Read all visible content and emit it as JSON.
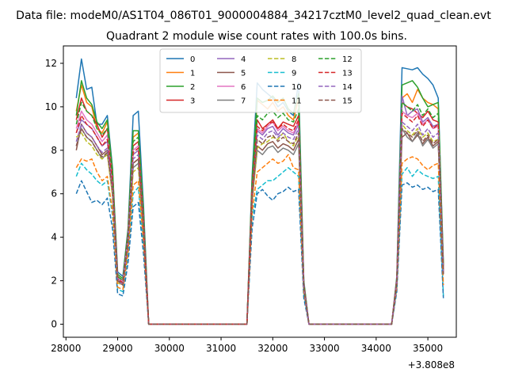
{
  "header": {
    "suptitle": "Data file: modeM0/AS1T04_086T01_9000004884_34217cztM0_level2_quad_clean.evt"
  },
  "chart_data": {
    "type": "line",
    "title": "Quadrant 2 module wise count rates with 100.0s bins.",
    "xlabel": "",
    "ylabel": "",
    "offset_label": "+3.808e8",
    "xlim": [
      27950,
      35550
    ],
    "ylim": [
      -0.6,
      12.8
    ],
    "xticks": [
      28000,
      29000,
      30000,
      31000,
      32000,
      33000,
      34000,
      35000
    ],
    "xtick_labels": [
      "28000",
      "29000",
      "30000",
      "31000",
      "32000",
      "33000",
      "34000",
      "35000"
    ],
    "yticks": [
      0,
      2,
      4,
      6,
      8,
      10,
      12
    ],
    "ytick_labels": [
      "0",
      "2",
      "4",
      "6",
      "8",
      "10",
      "12"
    ],
    "x": [
      28200,
      28300,
      28400,
      28500,
      28600,
      28700,
      28800,
      28900,
      29000,
      29100,
      29200,
      29300,
      29400,
      29500,
      29600,
      29700,
      29800,
      29900,
      30000,
      30100,
      30200,
      30300,
      30400,
      30500,
      30600,
      30700,
      30800,
      30900,
      31000,
      31100,
      31200,
      31300,
      31400,
      31500,
      31600,
      31700,
      31800,
      31900,
      32000,
      32100,
      32200,
      32300,
      32400,
      32500,
      32600,
      32700,
      32800,
      32900,
      33000,
      33100,
      33200,
      33300,
      33400,
      33500,
      33600,
      33700,
      33800,
      33900,
      34000,
      34100,
      34200,
      34300,
      34400,
      34500,
      34600,
      34700,
      34800,
      34900,
      35000,
      35100,
      35200,
      35300
    ],
    "legend": {
      "placement": "upper center",
      "columns": 4
    },
    "series": [
      {
        "name": "0",
        "color": "#1f77b4",
        "dash": "solid",
        "values": [
          10.4,
          12.2,
          10.8,
          10.9,
          9.2,
          9.2,
          9.6,
          7.2,
          2.4,
          2.2,
          4.4,
          9.6,
          9.8,
          5.4,
          0,
          0,
          0,
          0,
          0,
          0,
          0,
          0,
          0,
          0,
          0,
          0,
          0,
          0,
          0,
          0,
          0,
          0,
          0,
          0,
          6.8,
          11.1,
          10.8,
          10.6,
          10.4,
          10.0,
          10.2,
          9.8,
          9.6,
          11.1,
          2.0,
          0,
          0,
          0,
          0,
          0,
          0,
          0,
          0,
          0,
          0,
          0,
          0,
          0,
          0,
          0,
          0,
          0,
          2.2,
          11.8,
          11.75,
          11.7,
          11.8,
          11.5,
          11.3,
          11.0,
          10.4,
          2.8
        ]
      },
      {
        "name": "1",
        "color": "#ff7f0e",
        "dash": "solid",
        "values": [
          9.8,
          11.0,
          10.2,
          10.0,
          9.0,
          8.8,
          9.3,
          7.0,
          2.2,
          2.0,
          4.2,
          8.6,
          8.8,
          5.0,
          0,
          0,
          0,
          0,
          0,
          0,
          0,
          0,
          0,
          0,
          0,
          0,
          0,
          0,
          0,
          0,
          0,
          0,
          0,
          0,
          6.5,
          10.3,
          10.1,
          9.9,
          10.2,
          9.8,
          10.0,
          9.6,
          9.4,
          10.4,
          1.9,
          0,
          0,
          0,
          0,
          0,
          0,
          0,
          0,
          0,
          0,
          0,
          0,
          0,
          0,
          0,
          0,
          0,
          2.1,
          10.4,
          10.6,
          10.2,
          10.8,
          10.4,
          10.2,
          10.1,
          9.9,
          2.6
        ]
      },
      {
        "name": "2",
        "color": "#2ca02c",
        "dash": "solid",
        "values": [
          9.6,
          11.2,
          10.4,
          10.1,
          9.3,
          9.0,
          9.4,
          7.1,
          2.3,
          2.1,
          4.3,
          8.9,
          8.9,
          5.1,
          0,
          0,
          0,
          0,
          0,
          0,
          0,
          0,
          0,
          0,
          0,
          0,
          0,
          0,
          0,
          0,
          0,
          0,
          0,
          0,
          6.6,
          10.4,
          10.2,
          10.3,
          10.5,
          10.2,
          10.4,
          9.9,
          9.7,
          10.6,
          1.9,
          0,
          0,
          0,
          0,
          0,
          0,
          0,
          0,
          0,
          0,
          0,
          0,
          0,
          0,
          0,
          0,
          0,
          2.1,
          11.0,
          11.1,
          11.2,
          10.9,
          10.4,
          10.0,
          10.1,
          10.2,
          2.7
        ]
      },
      {
        "name": "3",
        "color": "#d62728",
        "dash": "solid",
        "values": [
          9.4,
          10.4,
          9.8,
          9.6,
          9.2,
          8.6,
          9.0,
          6.8,
          2.2,
          2.0,
          4.1,
          8.2,
          8.4,
          4.8,
          0,
          0,
          0,
          0,
          0,
          0,
          0,
          0,
          0,
          0,
          0,
          0,
          0,
          0,
          0,
          0,
          0,
          0,
          0,
          0,
          6.3,
          9.4,
          9.0,
          9.2,
          9.4,
          9.0,
          9.3,
          9.2,
          9.1,
          9.6,
          1.8,
          0,
          0,
          0,
          0,
          0,
          0,
          0,
          0,
          0,
          0,
          0,
          0,
          0,
          0,
          0,
          0,
          0,
          2.0,
          10.2,
          10.0,
          9.9,
          9.7,
          9.5,
          9.8,
          9.4,
          9.3,
          2.5
        ]
      },
      {
        "name": "4",
        "color": "#9467bd",
        "dash": "solid",
        "values": [
          8.8,
          9.4,
          9.2,
          9.0,
          8.6,
          8.2,
          8.4,
          6.4,
          2.1,
          1.9,
          3.9,
          7.8,
          8.0,
          4.6,
          0,
          0,
          0,
          0,
          0,
          0,
          0,
          0,
          0,
          0,
          0,
          0,
          0,
          0,
          0,
          0,
          0,
          0,
          0,
          0,
          6.0,
          8.9,
          8.7,
          9.0,
          9.1,
          8.7,
          9.0,
          8.8,
          8.7,
          9.2,
          1.8,
          0,
          0,
          0,
          0,
          0,
          0,
          0,
          0,
          0,
          0,
          0,
          0,
          0,
          0,
          0,
          0,
          0,
          2.0,
          10.5,
          9.6,
          9.8,
          9.9,
          9.3,
          9.5,
          9.1,
          9.2,
          2.4
        ]
      },
      {
        "name": "5",
        "color": "#8c564b",
        "dash": "solid",
        "values": [
          8.0,
          9.2,
          8.8,
          8.6,
          8.2,
          7.8,
          8.0,
          6.2,
          2.0,
          1.9,
          3.8,
          7.4,
          7.6,
          4.4,
          0,
          0,
          0,
          0,
          0,
          0,
          0,
          0,
          0,
          0,
          0,
          0,
          0,
          0,
          0,
          0,
          0,
          0,
          0,
          0,
          5.8,
          8.2,
          8.0,
          8.3,
          8.4,
          8.1,
          8.3,
          8.2,
          8.0,
          8.5,
          1.7,
          0,
          0,
          0,
          0,
          0,
          0,
          0,
          0,
          0,
          0,
          0,
          0,
          0,
          0,
          0,
          0,
          0,
          1.9,
          8.6,
          8.8,
          8.4,
          8.7,
          8.3,
          8.6,
          8.2,
          8.4,
          2.3
        ]
      },
      {
        "name": "6",
        "color": "#e377c2",
        "dash": "solid",
        "values": [
          9.0,
          9.8,
          9.4,
          9.2,
          8.8,
          8.4,
          8.7,
          6.6,
          2.1,
          2.0,
          4.0,
          8.0,
          8.2,
          4.7,
          0,
          0,
          0,
          0,
          0,
          0,
          0,
          0,
          0,
          0,
          0,
          0,
          0,
          0,
          0,
          0,
          0,
          0,
          0,
          0,
          6.1,
          9.0,
          8.8,
          9.1,
          9.3,
          8.9,
          9.1,
          8.9,
          8.8,
          9.3,
          1.8,
          0,
          0,
          0,
          0,
          0,
          0,
          0,
          0,
          0,
          0,
          0,
          0,
          0,
          0,
          0,
          0,
          0,
          2.0,
          9.8,
          9.6,
          9.5,
          9.7,
          9.2,
          9.4,
          9.0,
          9.1,
          2.4
        ]
      },
      {
        "name": "7",
        "color": "#7f7f7f",
        "dash": "solid",
        "values": [
          8.2,
          9.0,
          8.6,
          8.4,
          8.0,
          7.6,
          7.9,
          6.0,
          2.0,
          1.8,
          3.7,
          7.2,
          7.4,
          4.3,
          0,
          0,
          0,
          0,
          0,
          0,
          0,
          0,
          0,
          0,
          0,
          0,
          0,
          0,
          0,
          0,
          0,
          0,
          0,
          0,
          5.7,
          8.0,
          7.8,
          8.1,
          8.2,
          7.9,
          8.1,
          8.0,
          7.8,
          8.3,
          1.7,
          0,
          0,
          0,
          0,
          0,
          0,
          0,
          0,
          0,
          0,
          0,
          0,
          0,
          0,
          0,
          0,
          0,
          1.9,
          9.0,
          8.6,
          8.4,
          8.8,
          8.2,
          8.5,
          8.1,
          8.3,
          2.3
        ]
      },
      {
        "name": "8",
        "color": "#bcbd22",
        "dash": "dashed",
        "values": [
          8.6,
          8.8,
          8.4,
          8.2,
          7.8,
          7.6,
          7.8,
          5.9,
          1.9,
          1.8,
          3.6,
          7.0,
          7.2,
          4.2,
          0,
          0,
          0,
          0,
          0,
          0,
          0,
          0,
          0,
          0,
          0,
          0,
          0,
          0,
          0,
          0,
          0,
          0,
          0,
          0,
          5.6,
          8.1,
          8.3,
          8.4,
          8.6,
          8.5,
          8.8,
          8.4,
          8.2,
          8.7,
          1.7,
          0,
          0,
          0,
          0,
          0,
          0,
          0,
          0,
          0,
          0,
          0,
          0,
          0,
          0,
          0,
          0,
          0,
          1.9,
          9.2,
          8.9,
          8.7,
          9.0,
          8.6,
          8.8,
          8.4,
          8.5,
          2.3
        ]
      },
      {
        "name": "9",
        "color": "#17becf",
        "dash": "dashed",
        "values": [
          6.8,
          7.4,
          7.1,
          6.9,
          6.6,
          6.4,
          6.6,
          5.0,
          1.6,
          1.5,
          3.1,
          6.0,
          6.3,
          3.6,
          0,
          0,
          0,
          0,
          0,
          0,
          0,
          0,
          0,
          0,
          0,
          0,
          0,
          0,
          0,
          0,
          0,
          0,
          0,
          0,
          4.9,
          6.2,
          6.4,
          6.6,
          6.6,
          6.8,
          7.0,
          7.2,
          7.0,
          6.8,
          1.4,
          0,
          0,
          0,
          0,
          0,
          0,
          0,
          0,
          0,
          0,
          0,
          0,
          0,
          0,
          0,
          0,
          0,
          1.6,
          6.9,
          7.2,
          6.8,
          7.1,
          6.9,
          6.8,
          6.7,
          6.8,
          1.3
        ]
      },
      {
        "name": "10",
        "color": "#1f77b4",
        "dash": "dashed",
        "values": [
          6.0,
          6.6,
          6.1,
          5.6,
          5.7,
          5.5,
          5.8,
          4.4,
          1.4,
          1.3,
          2.8,
          5.4,
          5.6,
          3.2,
          0,
          0,
          0,
          0,
          0,
          0,
          0,
          0,
          0,
          0,
          0,
          0,
          0,
          0,
          0,
          0,
          0,
          0,
          0,
          0,
          4.4,
          6.0,
          6.2,
          5.9,
          5.7,
          6.0,
          6.1,
          6.3,
          6.1,
          6.2,
          1.2,
          0,
          0,
          0,
          0,
          0,
          0,
          0,
          0,
          0,
          0,
          0,
          0,
          0,
          0,
          0,
          0,
          0,
          1.5,
          6.4,
          6.5,
          6.3,
          6.4,
          6.2,
          6.3,
          6.1,
          6.2,
          1.2
        ]
      },
      {
        "name": "11",
        "color": "#ff7f0e",
        "dash": "dashed",
        "values": [
          7.2,
          7.6,
          7.5,
          7.6,
          7.0,
          6.6,
          6.8,
          5.2,
          1.7,
          1.6,
          3.3,
          6.4,
          6.6,
          3.8,
          0,
          0,
          0,
          0,
          0,
          0,
          0,
          0,
          0,
          0,
          0,
          0,
          0,
          0,
          0,
          0,
          0,
          0,
          0,
          0,
          5.1,
          7.0,
          7.2,
          7.4,
          7.6,
          7.4,
          7.5,
          7.8,
          7.2,
          7.1,
          1.5,
          0,
          0,
          0,
          0,
          0,
          0,
          0,
          0,
          0,
          0,
          0,
          0,
          0,
          0,
          0,
          0,
          0,
          1.7,
          7.4,
          7.6,
          7.7,
          7.6,
          7.3,
          7.1,
          7.3,
          7.4,
          1.8
        ]
      },
      {
        "name": "12",
        "color": "#2ca02c",
        "dash": "dashed",
        "values": [
          9.2,
          10.2,
          9.8,
          9.6,
          9.0,
          8.7,
          9.0,
          6.8,
          2.2,
          2.0,
          4.1,
          8.4,
          8.6,
          4.9,
          0,
          0,
          0,
          0,
          0,
          0,
          0,
          0,
          0,
          0,
          0,
          0,
          0,
          0,
          0,
          0,
          0,
          0,
          0,
          0,
          6.3,
          9.6,
          9.4,
          9.7,
          9.8,
          9.5,
          9.7,
          9.4,
          9.3,
          9.9,
          1.9,
          0,
          0,
          0,
          0,
          0,
          0,
          0,
          0,
          0,
          0,
          0,
          0,
          0,
          0,
          0,
          0,
          0,
          2.0,
          10.2,
          10.0,
          9.8,
          10.1,
          9.6,
          9.9,
          9.5,
          9.7,
          2.5
        ]
      },
      {
        "name": "13",
        "color": "#d62728",
        "dash": "dashed",
        "values": [
          8.8,
          9.6,
          9.2,
          9.0,
          8.6,
          8.2,
          8.5,
          6.5,
          2.1,
          1.9,
          3.9,
          7.9,
          8.1,
          4.6,
          0,
          0,
          0,
          0,
          0,
          0,
          0,
          0,
          0,
          0,
          0,
          0,
          0,
          0,
          0,
          0,
          0,
          0,
          0,
          0,
          6.0,
          9.1,
          8.9,
          9.2,
          9.3,
          9.0,
          9.2,
          9.0,
          8.9,
          9.4,
          1.8,
          0,
          0,
          0,
          0,
          0,
          0,
          0,
          0,
          0,
          0,
          0,
          0,
          0,
          0,
          0,
          0,
          0,
          2.0,
          9.7,
          9.5,
          9.3,
          9.6,
          9.1,
          9.4,
          9.0,
          9.2,
          2.4
        ]
      },
      {
        "name": "14",
        "color": "#9467bd",
        "dash": "dashed",
        "values": [
          8.4,
          9.2,
          8.8,
          8.6,
          8.2,
          7.9,
          8.1,
          6.2,
          2.0,
          1.8,
          3.8,
          7.6,
          7.8,
          4.4,
          0,
          0,
          0,
          0,
          0,
          0,
          0,
          0,
          0,
          0,
          0,
          0,
          0,
          0,
          0,
          0,
          0,
          0,
          0,
          0,
          5.8,
          8.7,
          8.5,
          8.8,
          8.9,
          8.6,
          8.8,
          8.6,
          8.5,
          9.0,
          1.7,
          0,
          0,
          0,
          0,
          0,
          0,
          0,
          0,
          0,
          0,
          0,
          0,
          0,
          0,
          0,
          0,
          0,
          1.9,
          9.3,
          9.1,
          8.9,
          9.2,
          8.7,
          9.0,
          8.6,
          8.8,
          2.3
        ]
      },
      {
        "name": "15",
        "color": "#8c564b",
        "dash": "dashed",
        "values": [
          8.2,
          9.0,
          8.6,
          8.4,
          8.0,
          7.7,
          7.9,
          6.1,
          2.0,
          1.8,
          3.7,
          7.4,
          7.6,
          4.3,
          0,
          0,
          0,
          0,
          0,
          0,
          0,
          0,
          0,
          0,
          0,
          0,
          0,
          0,
          0,
          0,
          0,
          0,
          0,
          0,
          5.7,
          8.5,
          8.3,
          8.6,
          8.7,
          8.4,
          8.6,
          8.4,
          8.3,
          8.8,
          1.7,
          0,
          0,
          0,
          0,
          0,
          0,
          0,
          0,
          0,
          0,
          0,
          0,
          0,
          0,
          0,
          0,
          0,
          1.9,
          9.0,
          8.8,
          8.6,
          8.9,
          8.4,
          8.7,
          8.3,
          8.5,
          2.3
        ]
      }
    ]
  }
}
